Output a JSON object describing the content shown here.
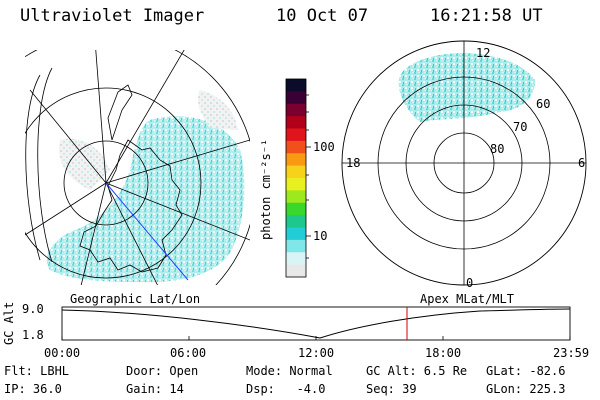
{
  "header": {
    "instrument": "Ultraviolet Imager",
    "date": "10 Oct 07",
    "time": "16:21:58 UT"
  },
  "colorbar": {
    "unit_label": "photon cm⁻²s⁻¹",
    "ticks": [
      "100",
      "10"
    ],
    "colors": [
      "#0b0b2a",
      "#3a0036",
      "#7a0030",
      "#b0001a",
      "#e0141c",
      "#f0501a",
      "#f89a14",
      "#f8d21a",
      "#e8f020",
      "#9ee81e",
      "#3ad82a",
      "#1ec88c",
      "#22cdd8",
      "#7fe6ea",
      "#d8f4f6",
      "#e8e8e8"
    ]
  },
  "polar_plot": {
    "mlt_labels": {
      "top": "12",
      "left": "18",
      "right": "6",
      "bottom": "0"
    },
    "lat_labels": [
      "60",
      "70",
      "80"
    ]
  },
  "timeline": {
    "left_title": "Geographic Lat/Lon",
    "right_title": "Apex MLat/MLT",
    "ylabel": "GC Alt",
    "y_ticks": [
      "9.0",
      "1.8"
    ],
    "x_ticks": [
      "00:00",
      "06:00",
      "12:00",
      "18:00",
      "23:59"
    ],
    "current_time_marker": "16:21:58"
  },
  "footer": {
    "row1": {
      "flt": "Flt: LBHL",
      "door": "Door: Open",
      "mode": "Mode: Normal",
      "gc_alt": "GC Alt: 6.5 Re",
      "glat": "GLat: -82.6"
    },
    "row2": {
      "ip": "IP: 36.0",
      "gain": "Gain: 14",
      "dsp": "Dsp:   -4.0",
      "seq": "Seq: 39",
      "glon": "GLon: 225.3"
    }
  }
}
